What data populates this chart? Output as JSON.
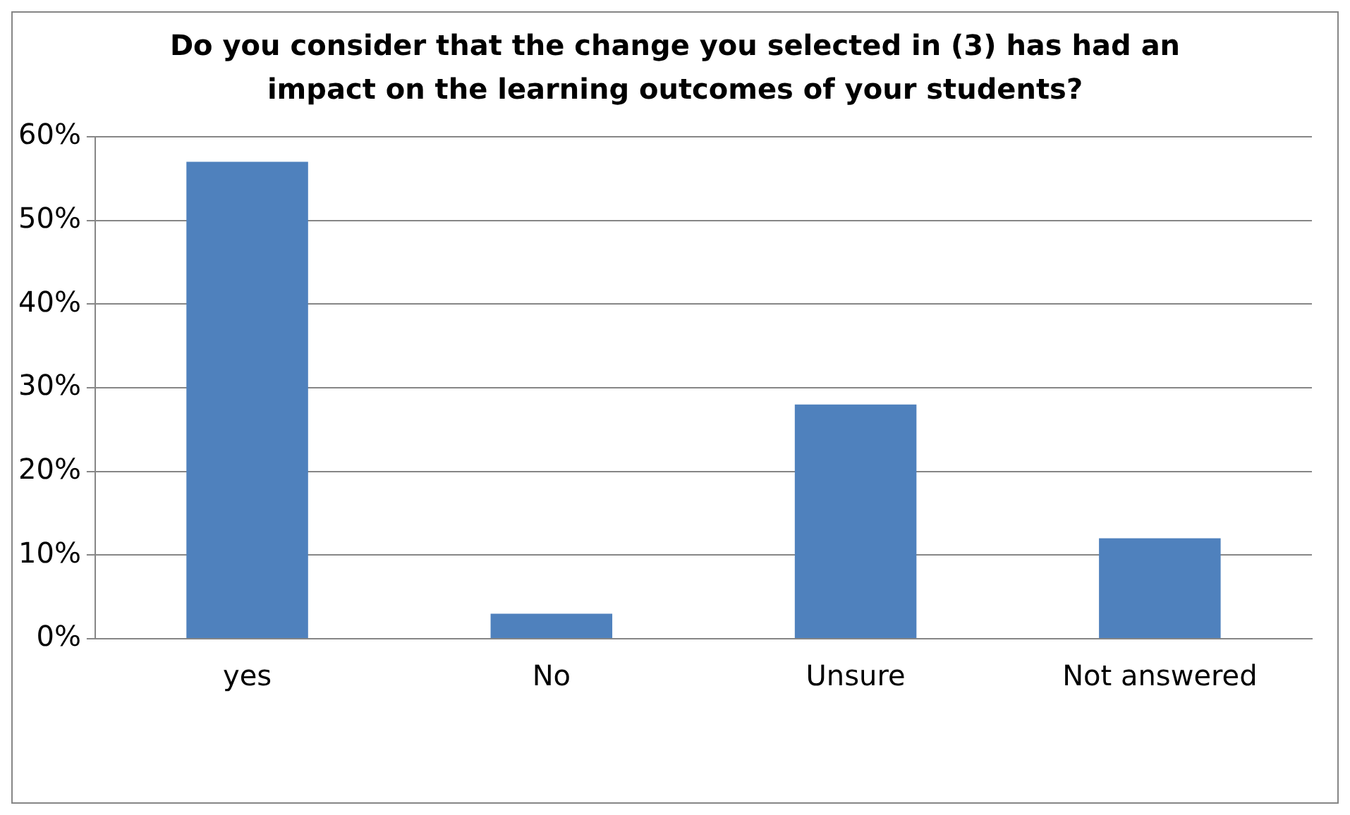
{
  "chart_data": {
    "type": "bar",
    "title": "Do you consider that the change you selected in (3) has had an impact on the learning outcomes of your students?",
    "categories": [
      "yes",
      "No",
      "Unsure",
      "Not answered"
    ],
    "values": [
      57,
      3,
      28,
      12
    ],
    "color": "#4f81bd",
    "ylim": [
      0,
      60
    ],
    "yticks": [
      {
        "value": 0,
        "label": "0%"
      },
      {
        "value": 10,
        "label": "10%"
      },
      {
        "value": 20,
        "label": "20%"
      },
      {
        "value": 30,
        "label": "30%"
      },
      {
        "value": 40,
        "label": "40%"
      },
      {
        "value": 50,
        "label": "50%"
      },
      {
        "value": 60,
        "label": "60%"
      }
    ],
    "grid": "y",
    "legend": false
  }
}
